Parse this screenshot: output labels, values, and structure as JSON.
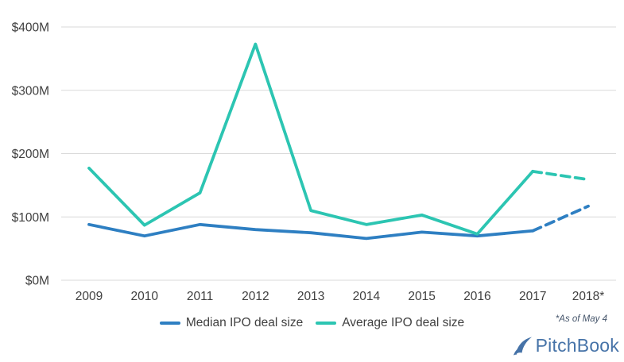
{
  "chart_data": {
    "type": "line",
    "title": "",
    "categories": [
      "2009",
      "2010",
      "2011",
      "2012",
      "2013",
      "2014",
      "2015",
      "2016",
      "2017",
      "2018*"
    ],
    "series": [
      {
        "name": "Median IPO deal size",
        "color": "#2e7fc2",
        "values": [
          88,
          70,
          88,
          80,
          75,
          66,
          76,
          70,
          78,
          117
        ],
        "dashed_last_segment": true
      },
      {
        "name": "Average IPO deal size",
        "color": "#2cc5b2",
        "values": [
          177,
          87,
          138,
          373,
          110,
          88,
          103,
          73,
          172,
          159
        ],
        "dashed_last_segment": true
      }
    ],
    "xlabel": "",
    "ylabel": "",
    "ylim": [
      0,
      400
    ],
    "ytick_step": 100,
    "ytick_labels": [
      "$0M",
      "$100M",
      "$200M",
      "$300M",
      "$400M"
    ],
    "grid": true,
    "legend_position": "bottom"
  },
  "footnote": "*As of May 4",
  "branding": {
    "logo_text": "PitchBook"
  },
  "colors": {
    "median_line": "#2e7fc2",
    "average_line": "#2cc5b2",
    "grid": "#d9d9d9",
    "axis_text": "#404040",
    "footnote_text": "#44546a",
    "logo_blue": "#4673a8"
  }
}
